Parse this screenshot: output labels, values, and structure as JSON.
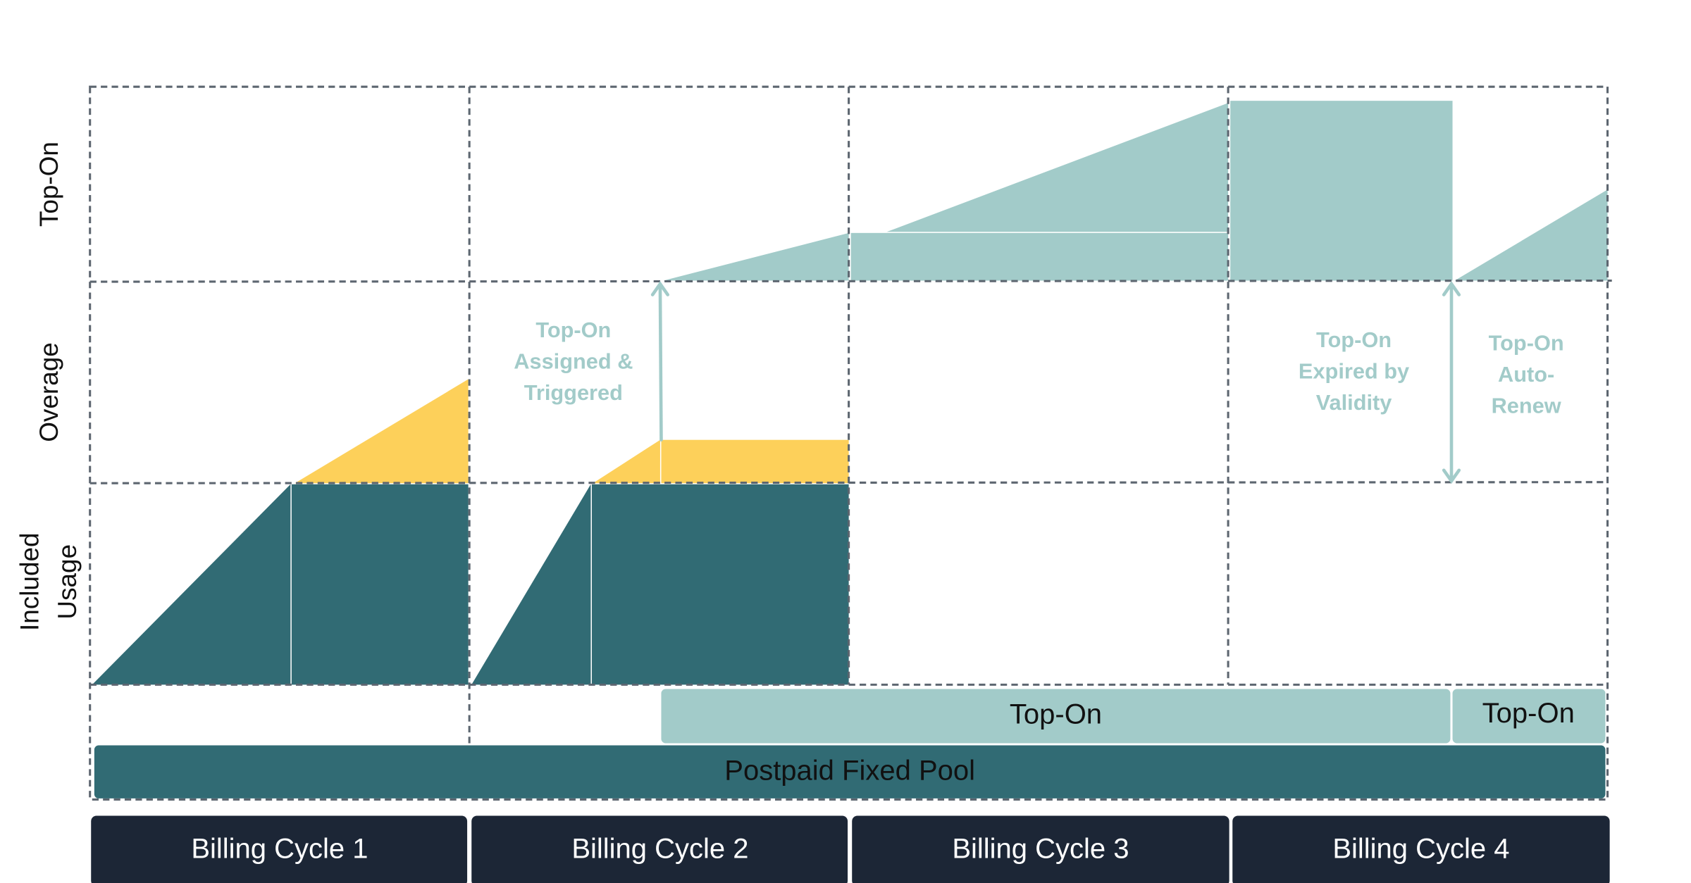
{
  "row_labels": {
    "top_on": "Top-On",
    "overage": "Overage",
    "included_usage": [
      "Included",
      "Usage"
    ]
  },
  "annotations": [
    {
      "lines": [
        "Top-On",
        "Assigned &",
        "Triggered"
      ]
    },
    {
      "lines": [
        "Top-On",
        "Expired by",
        "Validity"
      ]
    },
    {
      "lines": [
        "Top-On",
        "Auto-",
        "Renew"
      ]
    }
  ],
  "top_on_bars": [
    "Top-On",
    "Top-On"
  ],
  "pool": "Postpaid Fixed Pool",
  "billing_cycles": [
    "Billing Cycle 1",
    "Billing Cycle 2",
    "Billing Cycle 3",
    "Billing Cycle 4"
  ]
}
